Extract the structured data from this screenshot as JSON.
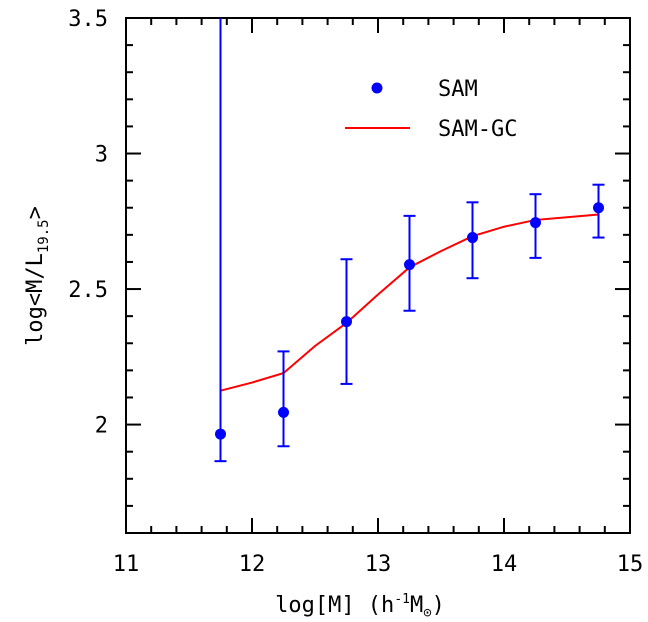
{
  "chart_data": {
    "type": "scatter",
    "xlabel": {
      "prefix": "log[M] (h",
      "exp": "-1",
      "mid": "M",
      "sub": "⊙",
      "suffix": ")"
    },
    "ylabel": {
      "prefix": "log<M/L",
      "sub": "19.5",
      "suffix": ">"
    },
    "xlim": [
      11,
      15
    ],
    "ylim": [
      1.6,
      3.5
    ],
    "x_ticks": [
      "11",
      "12",
      "13",
      "14",
      "15"
    ],
    "y_ticks": [
      "2",
      "2.5",
      "3",
      "3.5"
    ],
    "legend": {
      "position": "top-right"
    },
    "series": [
      {
        "name": "SAM",
        "type": "scatter",
        "color": "#0000ff",
        "marker": "circle",
        "x": [
          11.75,
          12.25,
          12.75,
          13.25,
          13.75,
          14.25,
          14.75
        ],
        "y": [
          1.965,
          2.045,
          2.38,
          2.59,
          2.69,
          2.745,
          2.8
        ],
        "err_low": [
          1.865,
          1.92,
          2.15,
          2.42,
          2.54,
          2.615,
          2.69
        ],
        "err_high": [
          3.5,
          2.27,
          2.61,
          2.77,
          2.82,
          2.85,
          2.885
        ]
      },
      {
        "name": "SAM-GC",
        "type": "line",
        "color": "#ff0000",
        "x": [
          11.75,
          12.0,
          12.25,
          12.5,
          12.75,
          13.0,
          13.25,
          13.5,
          13.75,
          14.0,
          14.25,
          14.5,
          14.75
        ],
        "y": [
          2.125,
          2.155,
          2.19,
          2.29,
          2.375,
          2.48,
          2.58,
          2.64,
          2.695,
          2.73,
          2.755,
          2.765,
          2.775
        ]
      }
    ]
  }
}
